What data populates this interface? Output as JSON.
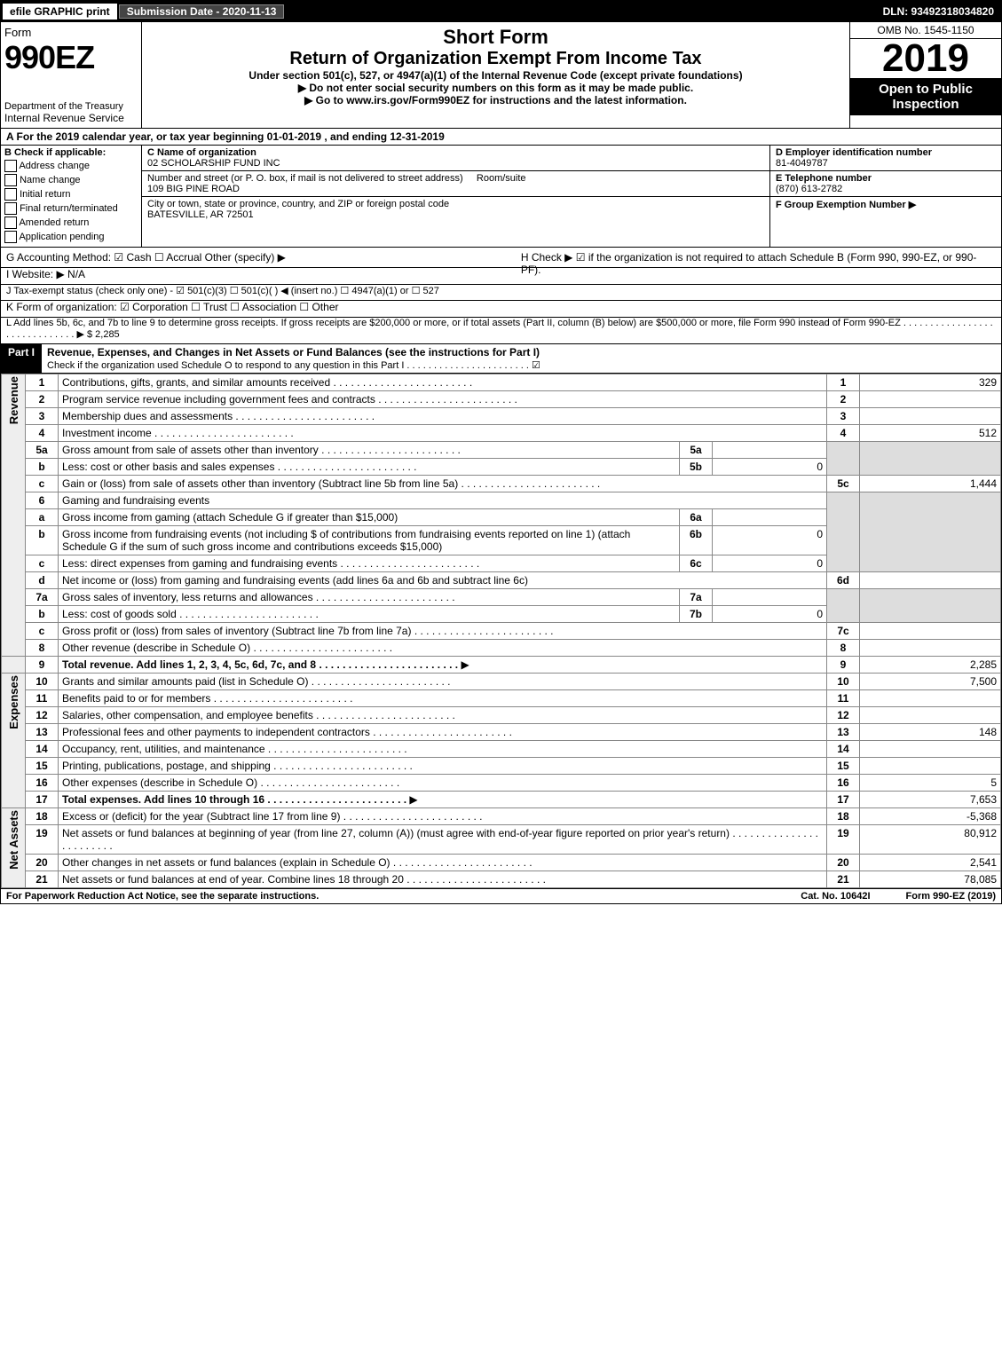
{
  "topbar": {
    "efile": "efile GRAPHIC print",
    "submission_lbl": "Submission Date - 2020-11-13",
    "dln_lbl": "DLN: 93492318034820"
  },
  "header": {
    "form_word": "Form",
    "form_no": "990EZ",
    "dept": "Department of the Treasury",
    "irs": "Internal Revenue Service",
    "title1": "Short Form",
    "title2": "Return of Organization Exempt From Income Tax",
    "title3": "Under section 501(c), 527, or 4947(a)(1) of the Internal Revenue Code (except private foundations)",
    "warn": "▶ Do not enter social security numbers on this form as it may be made public.",
    "goto": "▶ Go to www.irs.gov/Form990EZ for instructions and the latest information.",
    "omb": "OMB No. 1545-1150",
    "year": "2019",
    "open": "Open to Public Inspection"
  },
  "lineA": "A For the 2019 calendar year, or tax year beginning 01-01-2019 , and ending 12-31-2019",
  "boxB": {
    "hdr": "B Check if applicable:",
    "items": [
      "Address change",
      "Name change",
      "Initial return",
      "Final return/terminated",
      "Amended return",
      "Application pending"
    ]
  },
  "boxC": {
    "name_lbl": "C Name of organization",
    "name": "02 SCHOLARSHIP FUND INC",
    "street_lbl": "Number and street (or P. O. box, if mail is not delivered to street address)",
    "room_lbl": "Room/suite",
    "street": "109 BIG PINE ROAD",
    "city_lbl": "City or town, state or province, country, and ZIP or foreign postal code",
    "city": "BATESVILLE, AR  72501"
  },
  "boxD": {
    "lbl": "D Employer identification number",
    "val": "81-4049787"
  },
  "boxE": {
    "lbl": "E Telephone number",
    "val": "(870) 613-2782"
  },
  "boxF": {
    "lbl": "F Group Exemption Number  ▶"
  },
  "lineG": "G Accounting Method:  ☑ Cash  ☐ Accrual  Other (specify) ▶",
  "lineH": "H  Check ▶ ☑ if the organization is not required to attach Schedule B (Form 990, 990-EZ, or 990-PF).",
  "lineI": "I Website: ▶ N/A",
  "lineJ": "J Tax-exempt status (check only one) - ☑ 501(c)(3) ☐ 501(c)( ) ◀ (insert no.) ☐ 4947(a)(1) or ☐ 527",
  "lineK": "K Form of organization:  ☑ Corporation  ☐ Trust  ☐ Association  ☐ Other",
  "lineL": "L Add lines 5b, 6c, and 7b to line 9 to determine gross receipts. If gross receipts are $200,000 or more, or if total assets (Part II, column (B) below) are $500,000 or more, file Form 990 instead of Form 990-EZ . . . . . . . . . . . . . . . . . . . . . . . . . . . . . . ▶ $ 2,285",
  "part1": {
    "hdr": "Part I",
    "title": "Revenue, Expenses, and Changes in Net Assets or Fund Balances (see the instructions for Part I)",
    "sub": "Check if the organization used Schedule O to respond to any question in this Part I . . . . . . . . . . . . . . . . . . . . . . . ☑"
  },
  "side_labels": {
    "rev": "Revenue",
    "exp": "Expenses",
    "na": "Net Assets"
  },
  "lines": {
    "1": {
      "t": "Contributions, gifts, grants, and similar amounts received",
      "a": "329"
    },
    "2": {
      "t": "Program service revenue including government fees and contracts",
      "a": ""
    },
    "3": {
      "t": "Membership dues and assessments",
      "a": ""
    },
    "4": {
      "t": "Investment income",
      "a": "512"
    },
    "5a": {
      "t": "Gross amount from sale of assets other than inventory",
      "ia": ""
    },
    "5b": {
      "t": "Less: cost or other basis and sales expenses",
      "ia": "0"
    },
    "5c": {
      "t": "Gain or (loss) from sale of assets other than inventory (Subtract line 5b from line 5a)",
      "a": "1,444"
    },
    "6": {
      "t": "Gaming and fundraising events"
    },
    "6a": {
      "t": "Gross income from gaming (attach Schedule G if greater than $15,000)",
      "ia": ""
    },
    "6b": {
      "t": "Gross income from fundraising events (not including $                    of contributions from fundraising events reported on line 1) (attach Schedule G if the sum of such gross income and contributions exceeds $15,000)",
      "ia": "0"
    },
    "6c": {
      "t": "Less: direct expenses from gaming and fundraising events",
      "ia": "0"
    },
    "6d": {
      "t": "Net income or (loss) from gaming and fundraising events (add lines 6a and 6b and subtract line 6c)",
      "a": ""
    },
    "7a": {
      "t": "Gross sales of inventory, less returns and allowances",
      "ia": ""
    },
    "7b": {
      "t": "Less: cost of goods sold",
      "ia": "0"
    },
    "7c": {
      "t": "Gross profit or (loss) from sales of inventory (Subtract line 7b from line 7a)",
      "a": ""
    },
    "8": {
      "t": "Other revenue (describe in Schedule O)",
      "a": ""
    },
    "9": {
      "t": "Total revenue. Add lines 1, 2, 3, 4, 5c, 6d, 7c, and 8",
      "a": "2,285"
    },
    "10": {
      "t": "Grants and similar amounts paid (list in Schedule O)",
      "a": "7,500"
    },
    "11": {
      "t": "Benefits paid to or for members",
      "a": ""
    },
    "12": {
      "t": "Salaries, other compensation, and employee benefits",
      "a": ""
    },
    "13": {
      "t": "Professional fees and other payments to independent contractors",
      "a": "148"
    },
    "14": {
      "t": "Occupancy, rent, utilities, and maintenance",
      "a": ""
    },
    "15": {
      "t": "Printing, publications, postage, and shipping",
      "a": ""
    },
    "16": {
      "t": "Other expenses (describe in Schedule O)",
      "a": "5"
    },
    "17": {
      "t": "Total expenses. Add lines 10 through 16",
      "a": "7,653"
    },
    "18": {
      "t": "Excess or (deficit) for the year (Subtract line 17 from line 9)",
      "a": "-5,368"
    },
    "19": {
      "t": "Net assets or fund balances at beginning of year (from line 27, column (A)) (must agree with end-of-year figure reported on prior year's return)",
      "a": "80,912"
    },
    "20": {
      "t": "Other changes in net assets or fund balances (explain in Schedule O)",
      "a": "2,541"
    },
    "21": {
      "t": "Net assets or fund balances at end of year. Combine lines 18 through 20",
      "a": "78,085"
    }
  },
  "footer": {
    "l": "For Paperwork Reduction Act Notice, see the separate instructions.",
    "m": "Cat. No. 10642I",
    "r": "Form 990-EZ (2019)"
  },
  "colors": {
    "black": "#000000",
    "grey": "#dddddd",
    "link": "#0000ee"
  }
}
